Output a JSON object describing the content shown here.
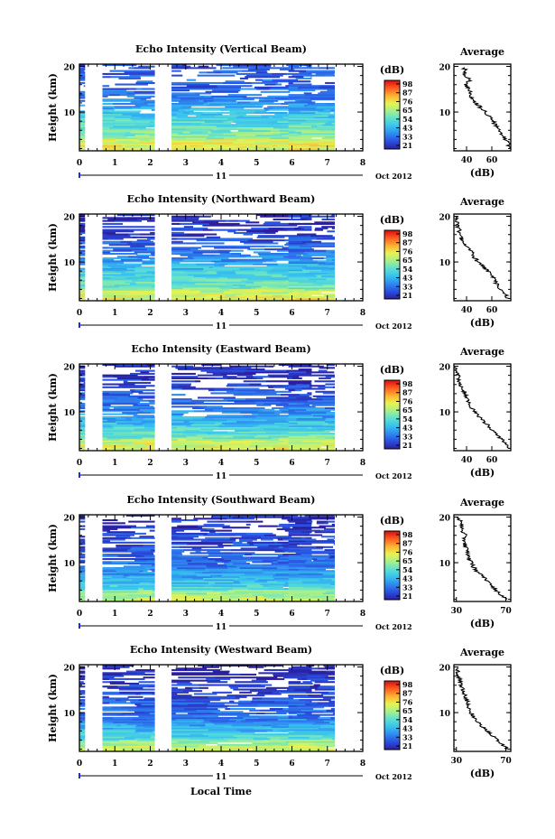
{
  "figure": {
    "x_axis_title": "Local Time",
    "day_label": "11",
    "date_label": "Oct 2012",
    "y_axis_title": "Height (km)",
    "colorbar_unit": "(dB)",
    "avg_title": "Average",
    "avg_xlabel": "(dB)"
  },
  "colors": {
    "colormap": [
      "#2b1fa0",
      "#2a4fe0",
      "#2f8af0",
      "#37c2f0",
      "#5fe0d0",
      "#a6f08a",
      "#e8f250",
      "#ffb030",
      "#ff5a20",
      "#d40f0f"
    ],
    "axis": "#000000",
    "background": "#ffffff"
  },
  "chart_data": [
    {
      "type": "heatmap",
      "title": "Echo Intensity (Vertical Beam)",
      "x_ticks": [
        "0",
        "1",
        "2",
        "3",
        "4",
        "5",
        "6",
        "7",
        "8"
      ],
      "y_ticks": [
        "10",
        "20"
      ],
      "colorbar_ticks": [
        "98",
        "87",
        "76",
        "65",
        "54",
        "43",
        "33",
        "21"
      ],
      "xlim": [
        0,
        8
      ],
      "ylim": [
        1.5,
        20.5
      ],
      "clim": [
        21,
        98
      ],
      "data_intervals": [
        [
          0,
          0.15
        ],
        [
          0.65,
          2.12
        ],
        [
          2.6,
          6.55
        ],
        [
          5.9,
          7.2
        ]
      ],
      "profile": {
        "avg_xticks": [
          "40",
          "60"
        ],
        "xlim": [
          30,
          75
        ],
        "heights_km": [
          2,
          3,
          4,
          5,
          6,
          7,
          8,
          9,
          10,
          11,
          12,
          13,
          14,
          15,
          16,
          17,
          18,
          19,
          20
        ],
        "values_db": [
          74,
          73,
          71,
          68,
          66,
          63,
          61,
          58,
          55,
          51,
          47,
          44,
          43,
          42,
          39,
          43,
          38,
          40,
          36
        ]
      }
    },
    {
      "type": "heatmap",
      "title": "Echo Intensity (Northward Beam)",
      "x_ticks": [
        "0",
        "1",
        "2",
        "3",
        "4",
        "5",
        "6",
        "7",
        "8"
      ],
      "y_ticks": [
        "10",
        "20"
      ],
      "colorbar_ticks": [
        "98",
        "87",
        "76",
        "65",
        "54",
        "43",
        "33",
        "21"
      ],
      "xlim": [
        0,
        8
      ],
      "ylim": [
        1.5,
        20.5
      ],
      "clim": [
        21,
        98
      ],
      "data_intervals": [
        [
          0,
          0.15
        ],
        [
          0.65,
          2.12
        ],
        [
          2.6,
          6.55
        ],
        [
          5.9,
          7.2
        ]
      ],
      "profile": {
        "avg_xticks": [
          "40",
          "60"
        ],
        "xlim": [
          30,
          75
        ],
        "heights_km": [
          2,
          3,
          4,
          5,
          6,
          7,
          8,
          9,
          10,
          11,
          12,
          13,
          14,
          15,
          16,
          17,
          18,
          19,
          20
        ],
        "values_db": [
          73,
          70,
          67,
          64,
          62,
          60,
          57,
          53,
          49,
          46,
          44,
          42,
          39,
          36,
          35,
          34,
          33,
          32,
          31
        ]
      }
    },
    {
      "type": "heatmap",
      "title": "Echo Intensity (Eastward Beam)",
      "x_ticks": [
        "0",
        "1",
        "2",
        "3",
        "4",
        "5",
        "6",
        "7",
        "8"
      ],
      "y_ticks": [
        "10",
        "20"
      ],
      "colorbar_ticks": [
        "98",
        "87",
        "76",
        "65",
        "54",
        "43",
        "33",
        "21"
      ],
      "xlim": [
        0,
        8
      ],
      "ylim": [
        1.5,
        20.5
      ],
      "clim": [
        21,
        98
      ],
      "data_intervals": [
        [
          0,
          0.15
        ],
        [
          0.65,
          2.12
        ],
        [
          2.6,
          6.55
        ],
        [
          5.9,
          7.2
        ]
      ],
      "profile": {
        "avg_xticks": [
          "40",
          "60"
        ],
        "xlim": [
          30,
          75
        ],
        "heights_km": [
          2,
          3,
          4,
          5,
          6,
          7,
          8,
          9,
          10,
          11,
          12,
          13,
          14,
          15,
          16,
          17,
          18,
          19,
          20
        ],
        "values_db": [
          73,
          71,
          68,
          64,
          61,
          57,
          53,
          50,
          47,
          44,
          42,
          40,
          39,
          37,
          35,
          34,
          33,
          32,
          31
        ]
      }
    },
    {
      "type": "heatmap",
      "title": "Echo Intensity (Southward Beam)",
      "x_ticks": [
        "0",
        "1",
        "2",
        "3",
        "4",
        "5",
        "6",
        "7",
        "8"
      ],
      "y_ticks": [
        "10",
        "20"
      ],
      "colorbar_ticks": [
        "98",
        "87",
        "76",
        "65",
        "54",
        "43",
        "33",
        "21"
      ],
      "xlim": [
        0,
        8
      ],
      "ylim": [
        1.5,
        20.5
      ],
      "clim": [
        21,
        98
      ],
      "data_intervals": [
        [
          0,
          0.15
        ],
        [
          0.65,
          2.12
        ],
        [
          2.6,
          6.55
        ],
        [
          5.9,
          7.2
        ]
      ],
      "profile": {
        "avg_xticks": [
          "30",
          "70"
        ],
        "xlim": [
          28,
          74
        ],
        "heights_km": [
          2,
          3,
          4,
          5,
          6,
          7,
          8,
          9,
          10,
          11,
          12,
          13,
          14,
          15,
          16,
          17,
          18,
          19,
          20
        ],
        "values_db": [
          70,
          66,
          62,
          58,
          55,
          51,
          47,
          44,
          42,
          40,
          39,
          38,
          37,
          36,
          37,
          35,
          34,
          33,
          32
        ]
      }
    },
    {
      "type": "heatmap",
      "title": "Echo Intensity (Westward Beam)",
      "x_ticks": [
        "0",
        "1",
        "2",
        "3",
        "4",
        "5",
        "6",
        "7",
        "8"
      ],
      "y_ticks": [
        "10",
        "20"
      ],
      "colorbar_ticks": [
        "98",
        "87",
        "76",
        "65",
        "54",
        "43",
        "33",
        "21"
      ],
      "xlim": [
        0,
        8
      ],
      "ylim": [
        1.5,
        20.5
      ],
      "clim": [
        21,
        98
      ],
      "data_intervals": [
        [
          0,
          0.15
        ],
        [
          0.65,
          2.12
        ],
        [
          2.6,
          6.55
        ],
        [
          5.9,
          7.2
        ]
      ],
      "profile": {
        "avg_xticks": [
          "30",
          "70"
        ],
        "xlim": [
          28,
          74
        ],
        "heights_km": [
          2,
          3,
          4,
          5,
          6,
          7,
          8,
          9,
          10,
          11,
          12,
          13,
          14,
          15,
          16,
          17,
          18,
          19,
          20
        ],
        "values_db": [
          71,
          67,
          63,
          59,
          55,
          51,
          47,
          44,
          42,
          40,
          39,
          38,
          37,
          35,
          34,
          33,
          32,
          31,
          30
        ]
      }
    }
  ]
}
